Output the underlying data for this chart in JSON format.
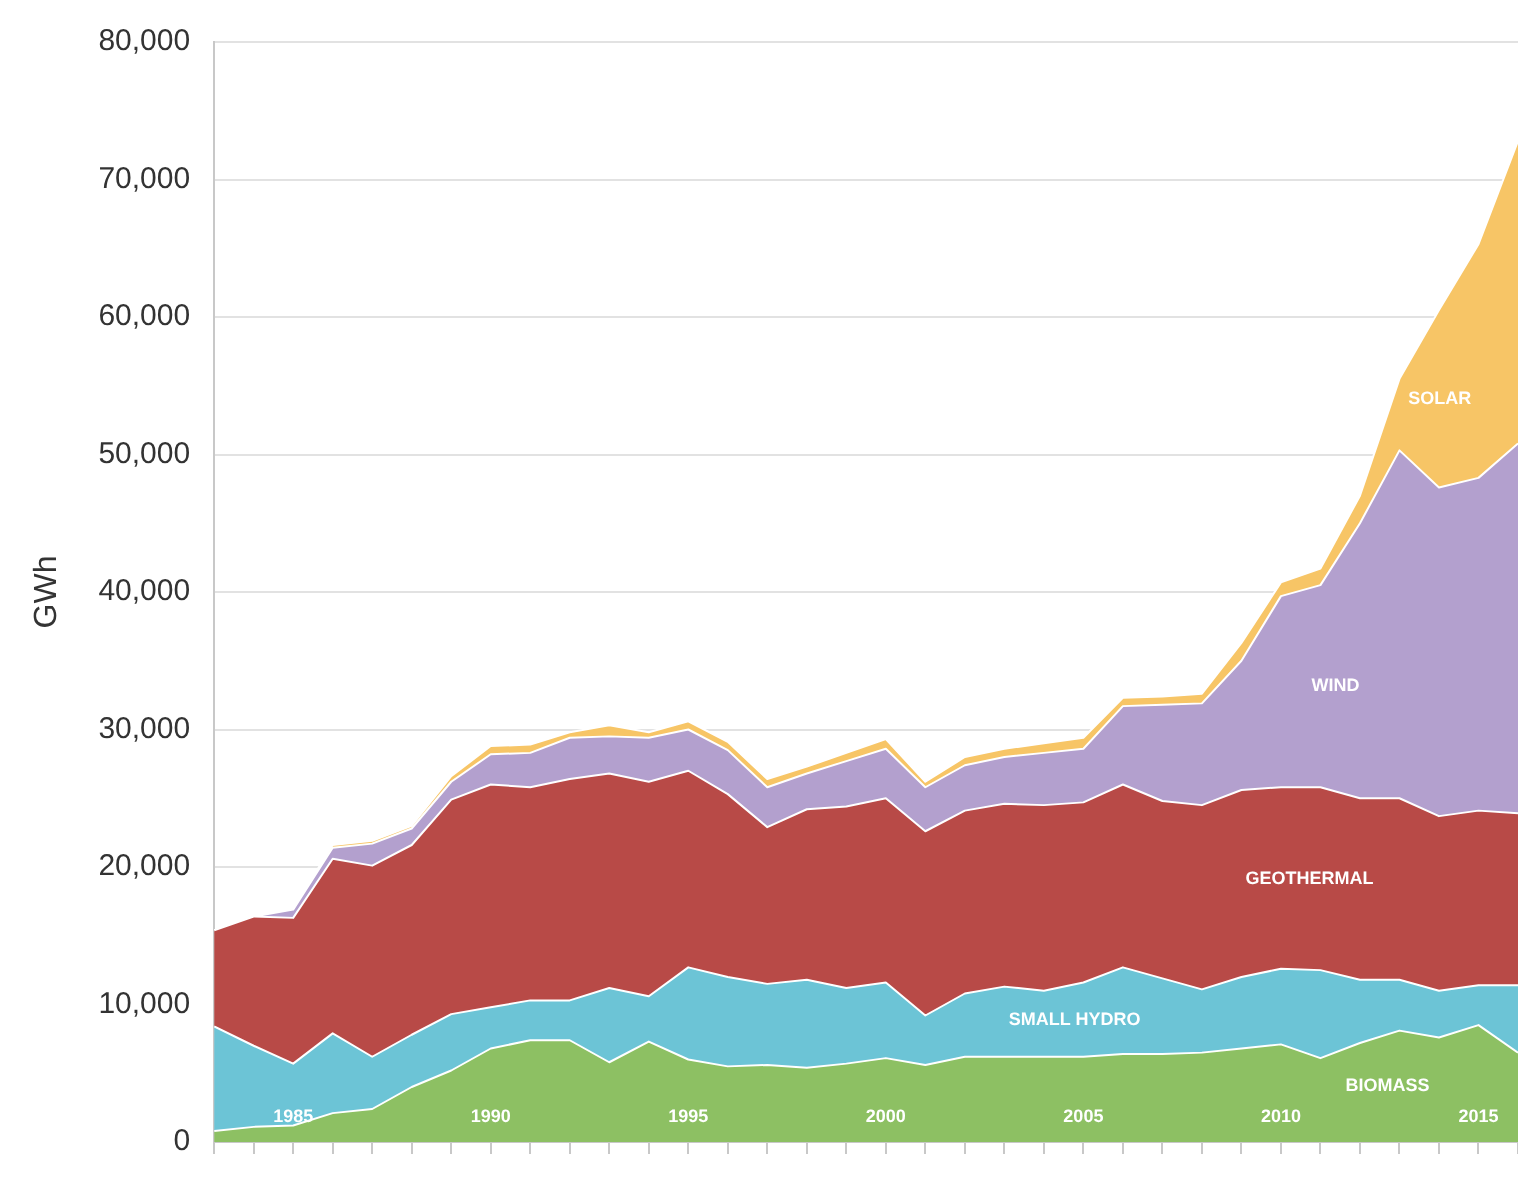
{
  "chart_data": {
    "type": "area",
    "stacked": true,
    "ylabel": "GWh",
    "legend": false,
    "grid": "y",
    "x": [
      1983,
      1984,
      1985,
      1986,
      1987,
      1988,
      1989,
      1990,
      1991,
      1992,
      1993,
      1994,
      1995,
      1996,
      1997,
      1998,
      1999,
      2000,
      2001,
      2002,
      2003,
      2004,
      2005,
      2006,
      2007,
      2008,
      2009,
      2010,
      2011,
      2012,
      2013,
      2014,
      2015,
      2016
    ],
    "xlim": [
      1983,
      2016
    ],
    "xticks": [
      {
        "value": 1983,
        "label": null
      },
      {
        "value": 1984,
        "label": null
      },
      1985,
      {
        "value": 1986,
        "label": null
      },
      {
        "value": 1987,
        "label": null
      },
      {
        "value": 1988,
        "label": null
      },
      {
        "value": 1989,
        "label": null
      },
      1990,
      {
        "value": 1991,
        "label": null
      },
      {
        "value": 1992,
        "label": null
      },
      {
        "value": 1993,
        "label": null
      },
      {
        "value": 1994,
        "label": null
      },
      1995,
      {
        "value": 1996,
        "label": null
      },
      {
        "value": 1997,
        "label": null
      },
      {
        "value": 1998,
        "label": null
      },
      {
        "value": 1999,
        "label": null
      },
      2000,
      {
        "value": 2001,
        "label": null
      },
      {
        "value": 2002,
        "label": null
      },
      {
        "value": 2003,
        "label": null
      },
      {
        "value": 2004,
        "label": null
      },
      2005,
      {
        "value": 2006,
        "label": null
      },
      {
        "value": 2007,
        "label": null
      },
      {
        "value": 2008,
        "label": null
      },
      {
        "value": 2009,
        "label": null
      },
      2010,
      {
        "value": 2011,
        "label": null
      },
      {
        "value": 2012,
        "label": null
      },
      {
        "value": 2013,
        "label": null
      },
      {
        "value": 2014,
        "label": null
      },
      2015,
      {
        "value": 2016,
        "label": null
      }
    ],
    "ylim": [
      0,
      80000
    ],
    "yticks": [
      {
        "value": 0,
        "label": "0"
      },
      {
        "value": 10000,
        "label": "10,000"
      },
      {
        "value": 20000,
        "label": "20,000"
      },
      {
        "value": 30000,
        "label": "30,000"
      },
      {
        "value": 40000,
        "label": "40,000"
      },
      {
        "value": 50000,
        "label": "50,000"
      },
      {
        "value": 60000,
        "label": "60,000"
      },
      {
        "value": 70000,
        "label": "70,000"
      },
      {
        "value": 80000,
        "label": "80,000"
      }
    ],
    "series": [
      {
        "name": "BIOMASS",
        "color": "#8dc063",
        "values": [
          800,
          1100,
          1200,
          2100,
          2400,
          4000,
          5200,
          6800,
          7400,
          7400,
          5800,
          7300,
          6000,
          5500,
          5600,
          5400,
          5700,
          6100,
          5600,
          6200,
          6200,
          6200,
          6200,
          6400,
          6400,
          6500,
          6800,
          7100,
          6100,
          7200,
          8100,
          7600,
          8500,
          6500
        ]
      },
      {
        "name": "SMALL HYDRO",
        "color": "#6cc4d6",
        "values": [
          7600,
          5900,
          4500,
          5800,
          3800,
          3800,
          4100,
          3000,
          2900,
          2900,
          5400,
          3300,
          6700,
          6500,
          5900,
          6400,
          5500,
          5500,
          3600,
          4600,
          5100,
          4800,
          5400,
          6300,
          5500,
          4600,
          5200,
          5500,
          6400,
          4600,
          3700,
          3400,
          2900,
          4900
        ]
      },
      {
        "name": "GEOTHERMAL",
        "color": "#b84a47",
        "values": [
          7000,
          9400,
          10600,
          12700,
          13900,
          13800,
          15600,
          16200,
          15500,
          16100,
          15600,
          15600,
          14300,
          13300,
          11400,
          12400,
          13200,
          13400,
          13400,
          13300,
          13300,
          13500,
          13100,
          13300,
          12900,
          13400,
          13600,
          13200,
          13300,
          13200,
          13200,
          12700,
          12700,
          12500
        ]
      },
      {
        "name": "WIND",
        "color": "#b3a0ce",
        "values": [
          0,
          0,
          600,
          800,
          1600,
          1200,
          1300,
          2200,
          2500,
          3000,
          2700,
          3200,
          3000,
          3200,
          2900,
          2600,
          3300,
          3600,
          3200,
          3300,
          3400,
          3800,
          3900,
          5700,
          7000,
          7400,
          9400,
          13900,
          14700,
          20000,
          25300,
          23900,
          24200,
          26900
        ]
      },
      {
        "name": "SOLAR",
        "color": "#f7c566",
        "values": [
          0,
          0,
          100,
          200,
          200,
          200,
          400,
          600,
          600,
          400,
          800,
          400,
          600,
          600,
          600,
          500,
          600,
          700,
          400,
          600,
          600,
          700,
          800,
          600,
          600,
          700,
          1300,
          1000,
          1200,
          2000,
          5200,
          12900,
          17000,
          22000
        ]
      }
    ]
  }
}
